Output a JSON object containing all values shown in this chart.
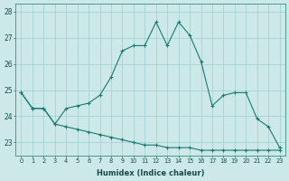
{
  "xlabel": "Humidex (Indice chaleur)",
  "x": [
    0,
    1,
    2,
    3,
    4,
    5,
    6,
    7,
    8,
    9,
    10,
    11,
    12,
    13,
    14,
    15,
    16,
    17,
    18,
    19,
    20,
    21,
    22,
    23
  ],
  "line1": [
    24.9,
    24.3,
    24.3,
    23.7,
    24.3,
    24.4,
    24.5,
    24.8,
    25.5,
    26.5,
    26.7,
    26.7,
    27.6,
    26.7,
    27.6,
    27.1,
    26.1,
    24.4,
    24.8,
    24.9,
    24.9,
    23.9,
    23.6,
    22.8
  ],
  "line2": [
    24.9,
    24.3,
    24.3,
    23.7,
    23.6,
    23.5,
    23.4,
    23.3,
    23.2,
    23.1,
    23.0,
    22.9,
    22.9,
    22.8,
    22.8,
    22.8,
    22.7,
    22.7,
    22.7,
    22.7,
    22.7,
    22.7,
    22.7,
    22.7
  ],
  "line_color": "#1a7a6e",
  "bg_color": "#cce8e8",
  "grid_color": "#9fcece",
  "ylim": [
    22.5,
    28.3
  ],
  "yticks": [
    23,
    24,
    25,
    26,
    27,
    28
  ],
  "xtick_labels": [
    "0",
    "1",
    "2",
    "3",
    "4",
    "5",
    "6",
    "7",
    "8",
    "9",
    "10",
    "11",
    "12",
    "13",
    "14",
    "15",
    "16",
    "17",
    "18",
    "19",
    "20",
    "21",
    "22",
    "23"
  ],
  "figsize": [
    3.2,
    2.0
  ],
  "dpi": 100
}
